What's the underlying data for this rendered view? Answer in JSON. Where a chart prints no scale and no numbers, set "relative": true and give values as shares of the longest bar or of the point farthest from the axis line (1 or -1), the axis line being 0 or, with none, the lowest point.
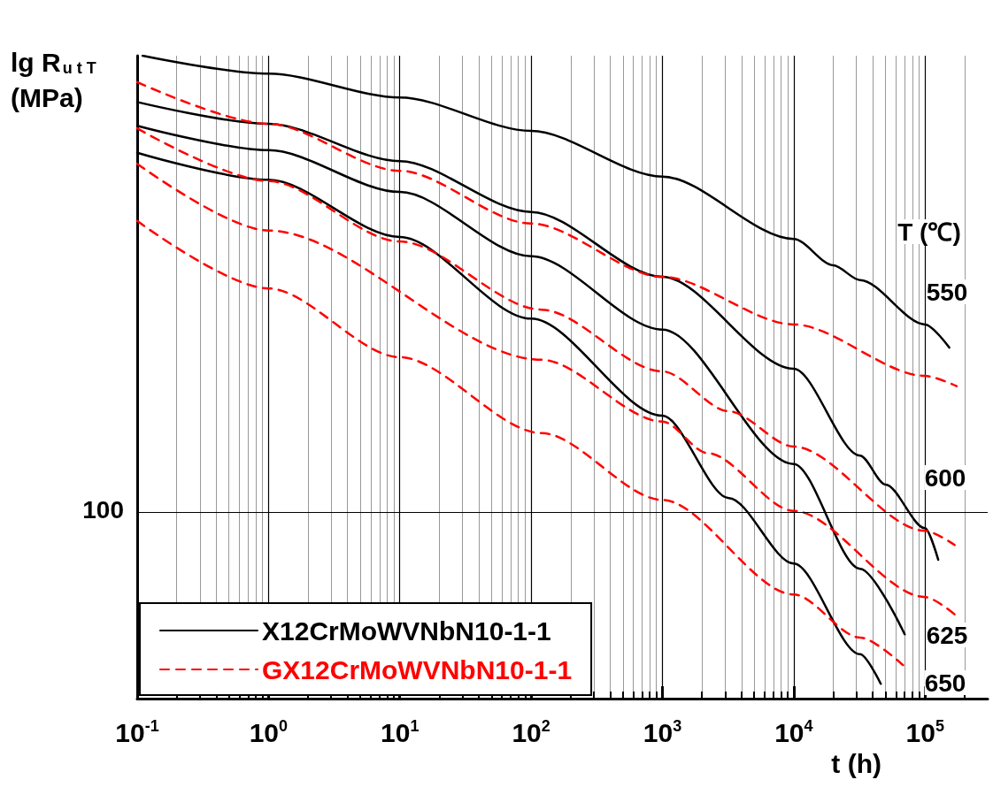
{
  "chart_data": {
    "type": "line",
    "relative": true,
    "log": "x",
    "grid": "x",
    "xlabel": "t (h)",
    "ylabel": "lg R$_{u t T}$ (MPa)",
    "xlim": [
      0.1,
      300000
    ],
    "xticks": [
      {
        "value": 0.1,
        "label": "10$^{-1}$"
      },
      {
        "value": 1,
        "label": "10$^{0}$"
      },
      {
        "value": 10,
        "label": "10$^{1}$"
      },
      {
        "value": 100,
        "label": "10$^{2}$"
      },
      {
        "value": 1000,
        "label": "10$^{3}$"
      },
      {
        "value": 10000,
        "label": "10$^{4}$"
      },
      {
        "value": 100000,
        "label": "10$^{5}$"
      }
    ],
    "legend": "bottom left",
    "ref_lines": [
      {
        "axis": "y",
        "value": 0.293,
        "color": "#000000"
      }
    ],
    "annotations": [
      "100",
      "T (℃)",
      "550",
      "600",
      "625",
      "650"
    ],
    "series": [
      {
        "name": "X12CrMoWVNbN10-1-1",
        "color": "#000000",
        "line_style": "solid",
        "x": [
          0.11,
          1,
          10,
          100,
          1000,
          10000,
          20000,
          32000,
          100000,
          153000
        ],
        "values": [
          1.0,
          0.972,
          0.935,
          0.883,
          0.812,
          0.715,
          0.674,
          0.651,
          0.582,
          0.546
        ]
      },
      {
        "color": "#000000",
        "line_style": "solid",
        "x": [
          0.1,
          1,
          10,
          100,
          1000,
          10000,
          32000,
          50000,
          100000,
          126000
        ],
        "values": [
          0.928,
          0.894,
          0.836,
          0.757,
          0.656,
          0.513,
          0.378,
          0.333,
          0.265,
          0.216
        ]
      },
      {
        "color": "#000000",
        "line_style": "solid",
        "x": [
          0.1,
          1,
          10,
          100,
          1000,
          10000,
          32000,
          70000
        ],
        "values": [
          0.891,
          0.853,
          0.788,
          0.688,
          0.574,
          0.365,
          0.202,
          0.1
        ]
      },
      {
        "color": "#000000",
        "line_style": "solid",
        "x": [
          0.1,
          1,
          10,
          100,
          1000,
          3200,
          10000,
          32000,
          46000
        ],
        "values": [
          0.849,
          0.807,
          0.718,
          0.591,
          0.44,
          0.312,
          0.21,
          0.069,
          0.023
        ]
      },
      {
        "name": "GX12CrMoWVNbN10-1-1",
        "color": "#ff0000",
        "line_style": "dashed",
        "x": [
          0.1,
          1,
          10,
          100,
          1000,
          10000,
          100000,
          174000
        ],
        "values": [
          0.959,
          0.894,
          0.821,
          0.739,
          0.656,
          0.582,
          0.502,
          0.486
        ]
      },
      {
        "color": "#ff0000",
        "line_style": "dashed",
        "x": [
          0.1,
          1,
          10,
          120,
          1000,
          3200,
          10000,
          100000,
          168000
        ],
        "values": [
          0.887,
          0.805,
          0.711,
          0.605,
          0.509,
          0.447,
          0.392,
          0.261,
          0.239
        ]
      },
      {
        "color": "#ff0000",
        "line_style": "dashed",
        "x": [
          0.1,
          1,
          120,
          1000,
          2200,
          10000,
          100000,
          168000
        ],
        "values": [
          0.832,
          0.728,
          0.527,
          0.431,
          0.382,
          0.292,
          0.158,
          0.131
        ]
      },
      {
        "color": "#ff0000",
        "line_style": "dashed",
        "x": [
          0.1,
          1,
          10,
          120,
          1000,
          10000,
          32000,
          68000
        ],
        "values": [
          0.743,
          0.638,
          0.531,
          0.413,
          0.309,
          0.162,
          0.095,
          0.052
        ]
      }
    ]
  }
}
